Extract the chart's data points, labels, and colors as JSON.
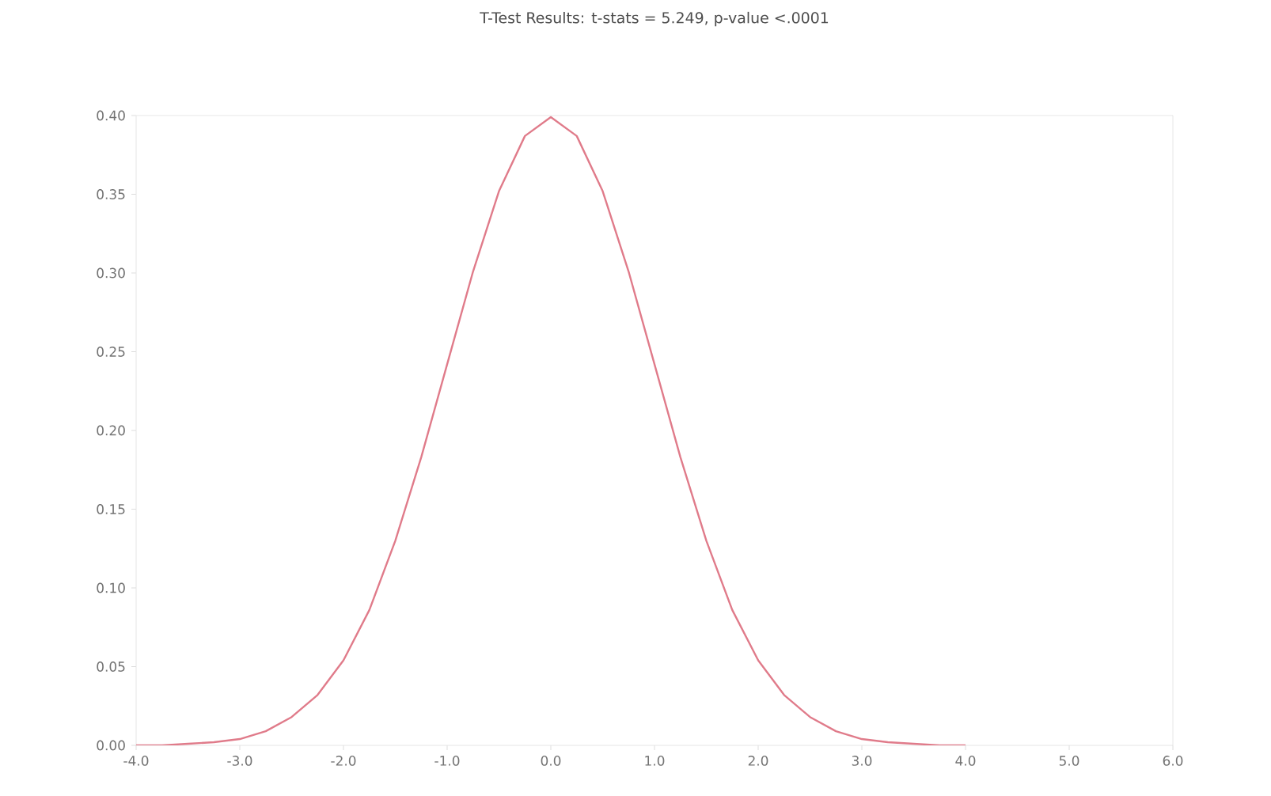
{
  "chart_data": {
    "type": "line",
    "title": "T-Test Results: t-stats = 5.249, p-value <.0001",
    "x": [
      -4,
      -3.75,
      -3.5,
      -3.25,
      -3,
      -2.75,
      -2.5,
      -2.25,
      -2,
      -1.75,
      -1.5,
      -1.25,
      -1,
      -0.75,
      -0.5,
      -0.25,
      0,
      0.25,
      0.5,
      0.75,
      1,
      1.25,
      1.5,
      1.75,
      2,
      2.25,
      2.5,
      2.75,
      3,
      3.25,
      3.5,
      3.75,
      4
    ],
    "series": [
      {
        "color": "#e07b8a",
        "values": [
          0.0,
          0.0,
          0.001,
          0.002,
          0.004,
          0.009,
          0.018,
          0.032,
          0.054,
          0.086,
          0.13,
          0.183,
          0.242,
          0.301,
          0.352,
          0.387,
          0.399,
          0.387,
          0.352,
          0.301,
          0.242,
          0.183,
          0.13,
          0.086,
          0.054,
          0.032,
          0.018,
          0.009,
          0.004,
          0.002,
          0.001,
          0.0,
          0.0
        ]
      }
    ],
    "xlim": [
      -4,
      6
    ],
    "ylim": [
      0,
      0.4
    ],
    "xticks": [
      {
        "value": -4,
        "label": "-4.0"
      },
      {
        "value": -3,
        "label": "-3.0"
      },
      {
        "value": -2,
        "label": "-2.0"
      },
      {
        "value": -1,
        "label": "-1.0"
      },
      {
        "value": 0,
        "label": "0.0"
      },
      {
        "value": 1,
        "label": "1.0"
      },
      {
        "value": 2,
        "label": "2.0"
      },
      {
        "value": 3,
        "label": "3.0"
      },
      {
        "value": 4,
        "label": "4.0"
      },
      {
        "value": 5,
        "label": "5.0"
      },
      {
        "value": 6,
        "label": "6.0"
      }
    ],
    "yticks": [
      {
        "value": 0,
        "label": "0.00"
      },
      {
        "value": 0.05,
        "label": "0.05"
      },
      {
        "value": 0.1,
        "label": "0.10"
      },
      {
        "value": 0.15,
        "label": "0.15"
      },
      {
        "value": 0.2,
        "label": "0.20"
      },
      {
        "value": 0.25,
        "label": "0.25"
      },
      {
        "value": 0.3,
        "label": "0.30"
      },
      {
        "value": 0.35,
        "label": "0.35"
      },
      {
        "value": 0.4,
        "label": "0.40"
      }
    ],
    "grid": false
  }
}
